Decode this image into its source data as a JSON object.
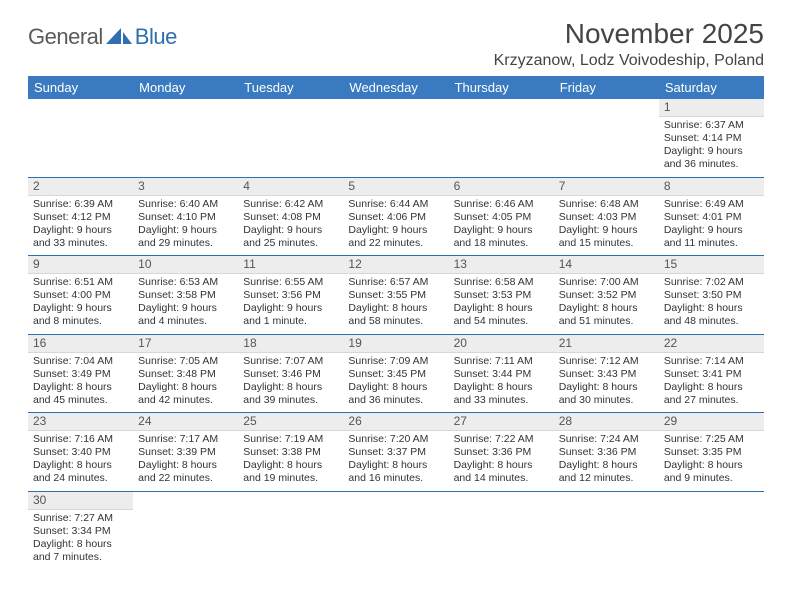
{
  "logo": {
    "general": "General",
    "blue": "Blue"
  },
  "title": "November 2025",
  "location": "Krzyzanow, Lodz Voivodeship, Poland",
  "colors": {
    "header_bg": "#3a7ac0",
    "header_text": "#ffffff",
    "rule": "#2f6fb0",
    "daynum_bg": "#ededed",
    "text": "#333333"
  },
  "day_headers": [
    "Sunday",
    "Monday",
    "Tuesday",
    "Wednesday",
    "Thursday",
    "Friday",
    "Saturday"
  ],
  "weeks": [
    [
      null,
      null,
      null,
      null,
      null,
      null,
      {
        "n": "1",
        "sunrise": "6:37 AM",
        "sunset": "4:14 PM",
        "dl": "9 hours and 36 minutes."
      }
    ],
    [
      {
        "n": "2",
        "sunrise": "6:39 AM",
        "sunset": "4:12 PM",
        "dl": "9 hours and 33 minutes."
      },
      {
        "n": "3",
        "sunrise": "6:40 AM",
        "sunset": "4:10 PM",
        "dl": "9 hours and 29 minutes."
      },
      {
        "n": "4",
        "sunrise": "6:42 AM",
        "sunset": "4:08 PM",
        "dl": "9 hours and 25 minutes."
      },
      {
        "n": "5",
        "sunrise": "6:44 AM",
        "sunset": "4:06 PM",
        "dl": "9 hours and 22 minutes."
      },
      {
        "n": "6",
        "sunrise": "6:46 AM",
        "sunset": "4:05 PM",
        "dl": "9 hours and 18 minutes."
      },
      {
        "n": "7",
        "sunrise": "6:48 AM",
        "sunset": "4:03 PM",
        "dl": "9 hours and 15 minutes."
      },
      {
        "n": "8",
        "sunrise": "6:49 AM",
        "sunset": "4:01 PM",
        "dl": "9 hours and 11 minutes."
      }
    ],
    [
      {
        "n": "9",
        "sunrise": "6:51 AM",
        "sunset": "4:00 PM",
        "dl": "9 hours and 8 minutes."
      },
      {
        "n": "10",
        "sunrise": "6:53 AM",
        "sunset": "3:58 PM",
        "dl": "9 hours and 4 minutes."
      },
      {
        "n": "11",
        "sunrise": "6:55 AM",
        "sunset": "3:56 PM",
        "dl": "9 hours and 1 minute."
      },
      {
        "n": "12",
        "sunrise": "6:57 AM",
        "sunset": "3:55 PM",
        "dl": "8 hours and 58 minutes."
      },
      {
        "n": "13",
        "sunrise": "6:58 AM",
        "sunset": "3:53 PM",
        "dl": "8 hours and 54 minutes."
      },
      {
        "n": "14",
        "sunrise": "7:00 AM",
        "sunset": "3:52 PM",
        "dl": "8 hours and 51 minutes."
      },
      {
        "n": "15",
        "sunrise": "7:02 AM",
        "sunset": "3:50 PM",
        "dl": "8 hours and 48 minutes."
      }
    ],
    [
      {
        "n": "16",
        "sunrise": "7:04 AM",
        "sunset": "3:49 PM",
        "dl": "8 hours and 45 minutes."
      },
      {
        "n": "17",
        "sunrise": "7:05 AM",
        "sunset": "3:48 PM",
        "dl": "8 hours and 42 minutes."
      },
      {
        "n": "18",
        "sunrise": "7:07 AM",
        "sunset": "3:46 PM",
        "dl": "8 hours and 39 minutes."
      },
      {
        "n": "19",
        "sunrise": "7:09 AM",
        "sunset": "3:45 PM",
        "dl": "8 hours and 36 minutes."
      },
      {
        "n": "20",
        "sunrise": "7:11 AM",
        "sunset": "3:44 PM",
        "dl": "8 hours and 33 minutes."
      },
      {
        "n": "21",
        "sunrise": "7:12 AM",
        "sunset": "3:43 PM",
        "dl": "8 hours and 30 minutes."
      },
      {
        "n": "22",
        "sunrise": "7:14 AM",
        "sunset": "3:41 PM",
        "dl": "8 hours and 27 minutes."
      }
    ],
    [
      {
        "n": "23",
        "sunrise": "7:16 AM",
        "sunset": "3:40 PM",
        "dl": "8 hours and 24 minutes."
      },
      {
        "n": "24",
        "sunrise": "7:17 AM",
        "sunset": "3:39 PM",
        "dl": "8 hours and 22 minutes."
      },
      {
        "n": "25",
        "sunrise": "7:19 AM",
        "sunset": "3:38 PM",
        "dl": "8 hours and 19 minutes."
      },
      {
        "n": "26",
        "sunrise": "7:20 AM",
        "sunset": "3:37 PM",
        "dl": "8 hours and 16 minutes."
      },
      {
        "n": "27",
        "sunrise": "7:22 AM",
        "sunset": "3:36 PM",
        "dl": "8 hours and 14 minutes."
      },
      {
        "n": "28",
        "sunrise": "7:24 AM",
        "sunset": "3:36 PM",
        "dl": "8 hours and 12 minutes."
      },
      {
        "n": "29",
        "sunrise": "7:25 AM",
        "sunset": "3:35 PM",
        "dl": "8 hours and 9 minutes."
      }
    ],
    [
      {
        "n": "30",
        "sunrise": "7:27 AM",
        "sunset": "3:34 PM",
        "dl": "8 hours and 7 minutes."
      },
      null,
      null,
      null,
      null,
      null,
      null
    ]
  ],
  "labels": {
    "sunrise": "Sunrise:",
    "sunset": "Sunset:",
    "daylight": "Daylight:"
  }
}
